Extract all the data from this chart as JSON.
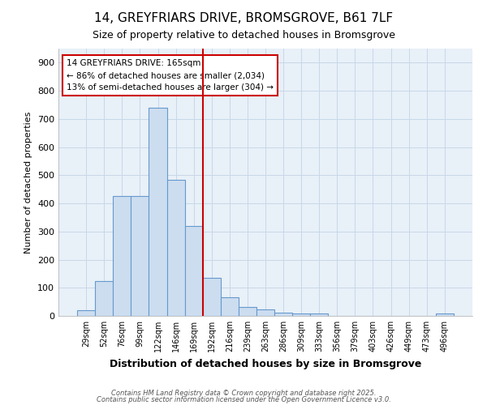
{
  "title1": "14, GREYFRIARS DRIVE, BROMSGROVE, B61 7LF",
  "title2": "Size of property relative to detached houses in Bromsgrove",
  "xlabel": "Distribution of detached houses by size in Bromsgrove",
  "ylabel": "Number of detached properties",
  "bar_labels": [
    "29sqm",
    "52sqm",
    "76sqm",
    "99sqm",
    "122sqm",
    "146sqm",
    "169sqm",
    "192sqm",
    "216sqm",
    "239sqm",
    "263sqm",
    "286sqm",
    "309sqm",
    "333sqm",
    "356sqm",
    "379sqm",
    "403sqm",
    "426sqm",
    "449sqm",
    "473sqm",
    "496sqm"
  ],
  "bar_values": [
    20,
    125,
    425,
    425,
    740,
    485,
    320,
    135,
    65,
    32,
    22,
    12,
    8,
    8,
    0,
    0,
    0,
    0,
    0,
    0,
    8
  ],
  "bar_color": "#ccddf0",
  "bar_edgecolor": "#6699cc",
  "vline_color": "#cc0000",
  "vline_index": 7,
  "annotation_text": "14 GREYFRIARS DRIVE: 165sqm\n← 86% of detached houses are smaller (2,034)\n13% of semi-detached houses are larger (304) →",
  "annotation_box_color": "#ffffff",
  "annotation_box_edgecolor": "#cc0000",
  "ylim": [
    0,
    950
  ],
  "yticks": [
    0,
    100,
    200,
    300,
    400,
    500,
    600,
    700,
    800,
    900
  ],
  "grid_color": "#c8d8e8",
  "bg_color": "#e8f0f8",
  "fig_color": "#ffffff",
  "footer1": "Contains HM Land Registry data © Crown copyright and database right 2025.",
  "footer2": "Contains public sector information licensed under the Open Government Licence v3.0."
}
